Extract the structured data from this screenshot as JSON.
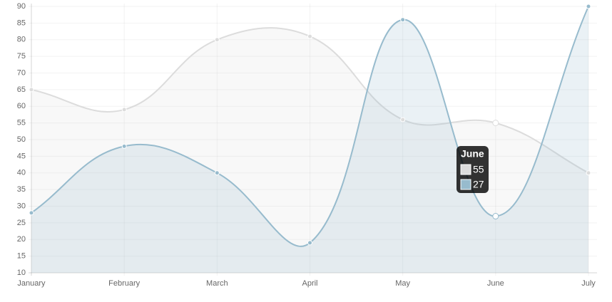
{
  "chart_data": {
    "type": "line",
    "categories": [
      "January",
      "February",
      "March",
      "April",
      "May",
      "June",
      "July"
    ],
    "series": [
      {
        "color": "#dcdcdc",
        "values": [
          65,
          59,
          80,
          81,
          56,
          55,
          40
        ]
      },
      {
        "color": "#97bbcd",
        "values": [
          28,
          48,
          40,
          19,
          86,
          27,
          90
        ]
      }
    ],
    "ylim": [
      10,
      90
    ],
    "yticks": [
      10,
      15,
      20,
      25,
      30,
      35,
      40,
      45,
      50,
      55,
      60,
      65,
      70,
      75,
      80,
      85,
      90
    ],
    "grid": true,
    "curved": true,
    "fill": true
  }
}
